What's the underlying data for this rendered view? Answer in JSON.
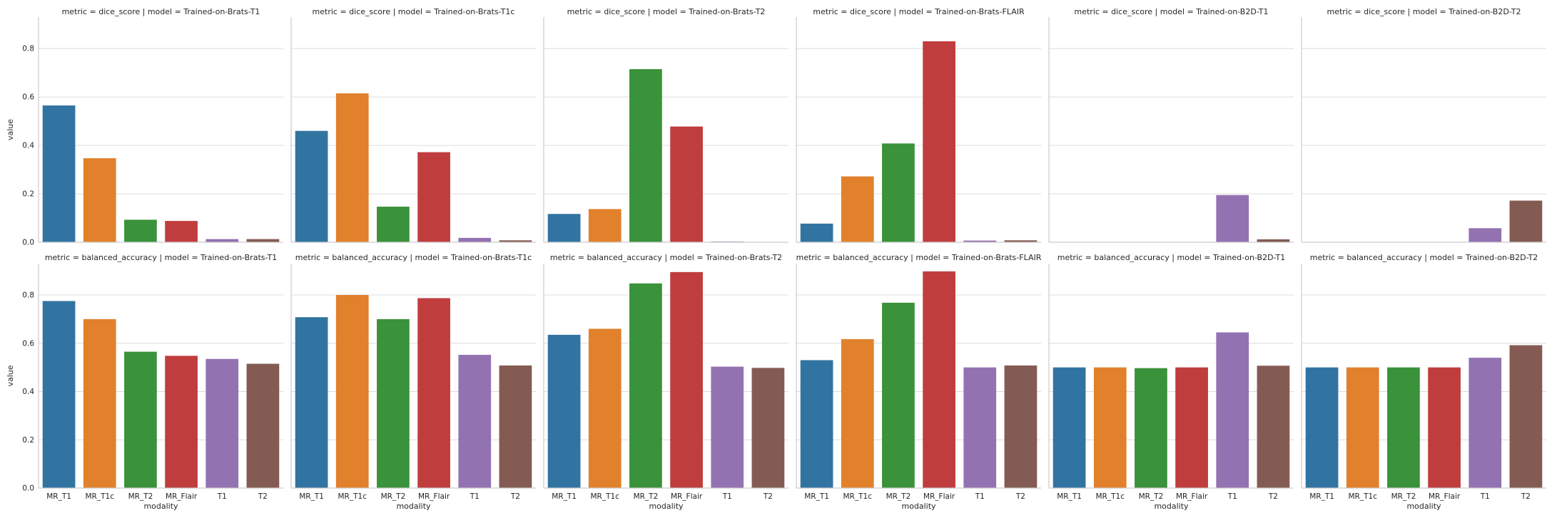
{
  "chart_data": {
    "type": "bar",
    "layout": "facet-grid",
    "categories": [
      "MR_T1",
      "MR_T1c",
      "MR_T2",
      "MR_Flair",
      "T1",
      "T2"
    ],
    "category_colors": [
      "#3274a1",
      "#e1812c",
      "#3a923a",
      "#c03d3e",
      "#9372b2",
      "#845b53"
    ],
    "xlabel": "modality",
    "ylabel": "value",
    "ylim": [
      0,
      0.93
    ],
    "yticks": [
      "0.0",
      "0.2",
      "0.4",
      "0.6",
      "0.8"
    ],
    "grid": true,
    "rows": [
      {
        "metric": "dice_score",
        "panels": [
          {
            "title": "metric = dice_score | model = Trained-on-Brats-T1",
            "values": [
              0.565,
              0.347,
              0.093,
              0.088,
              0.013,
              0.013
            ]
          },
          {
            "title": "metric = dice_score | model = Trained-on-Brats-T1c",
            "values": [
              0.46,
              0.615,
              0.147,
              0.372,
              0.018,
              0.008
            ]
          },
          {
            "title": "metric = dice_score | model = Trained-on-Brats-T2",
            "values": [
              0.117,
              0.137,
              0.715,
              0.478,
              0.003,
              0.0
            ]
          },
          {
            "title": "metric = dice_score | model = Trained-on-Brats-FLAIR",
            "values": [
              0.077,
              0.272,
              0.408,
              0.83,
              0.007,
              0.008
            ]
          },
          {
            "title": "metric = dice_score | model = Trained-on-B2D-T1",
            "values": [
              0.0,
              0.0,
              0.0,
              0.0,
              0.195,
              0.012
            ]
          },
          {
            "title": "metric = dice_score | model = Trained-on-B2D-T2",
            "values": [
              0.0,
              0.0,
              0.0,
              0.0,
              0.058,
              0.172
            ]
          }
        ]
      },
      {
        "metric": "balanced_accuracy",
        "panels": [
          {
            "title": "metric = balanced_accuracy | model = Trained-on-Brats-T1",
            "values": [
              0.775,
              0.7,
              0.565,
              0.548,
              0.535,
              0.515
            ]
          },
          {
            "title": "metric = balanced_accuracy | model = Trained-on-Brats-T1c",
            "values": [
              0.708,
              0.8,
              0.7,
              0.787,
              0.552,
              0.508
            ]
          },
          {
            "title": "metric = balanced_accuracy | model = Trained-on-Brats-T2",
            "values": [
              0.635,
              0.66,
              0.848,
              0.895,
              0.503,
              0.498
            ]
          },
          {
            "title": "metric = balanced_accuracy | model = Trained-on-Brats-FLAIR",
            "values": [
              0.53,
              0.617,
              0.768,
              0.898,
              0.5,
              0.508
            ]
          },
          {
            "title": "metric = balanced_accuracy | model = Trained-on-B2D-T1",
            "values": [
              0.5,
              0.5,
              0.497,
              0.5,
              0.645,
              0.507
            ]
          },
          {
            "title": "metric = balanced_accuracy | model = Trained-on-B2D-T2",
            "values": [
              0.5,
              0.5,
              0.5,
              0.5,
              0.54,
              0.592
            ]
          }
        ]
      }
    ]
  }
}
